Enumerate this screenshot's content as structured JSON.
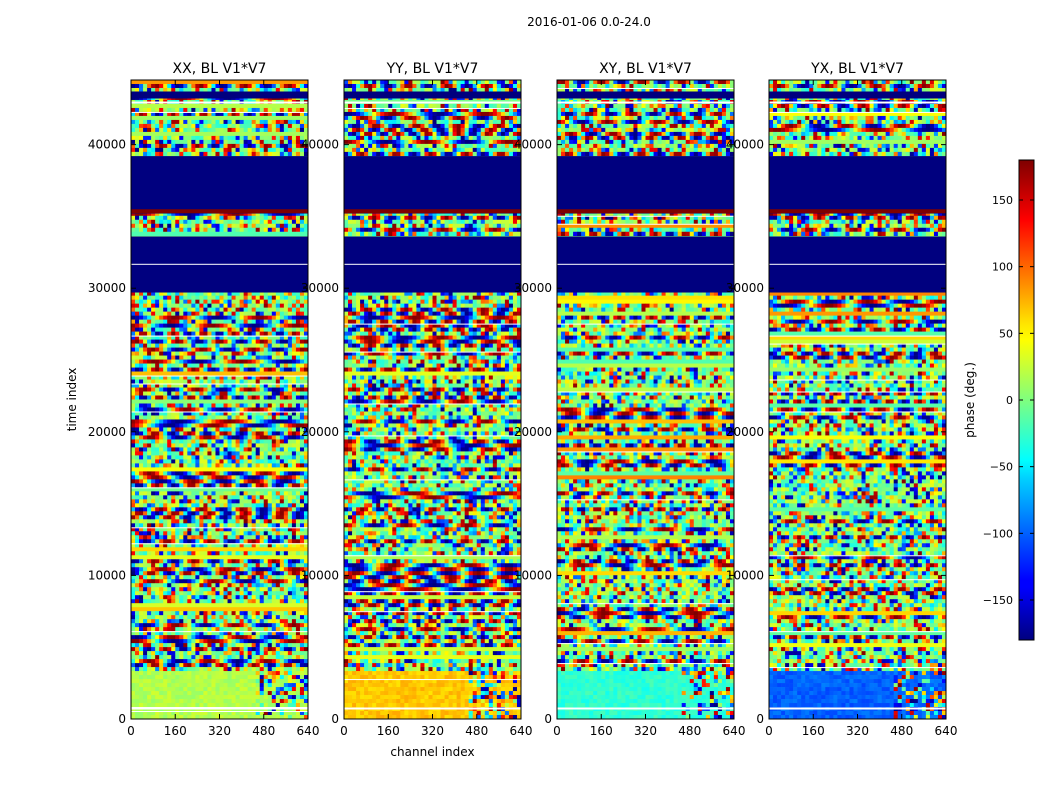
{
  "figure": {
    "suptitle": "2016-01-06 0.0-24.0"
  },
  "chart_data": [
    {
      "type": "heatmap",
      "title": "XX, BL V1*V7",
      "xlabel": "",
      "ylabel": "time index",
      "xlim": [
        0,
        640
      ],
      "ylim": [
        0,
        44500
      ],
      "xticks": [
        "0",
        "160",
        "320",
        "480",
        "640"
      ],
      "yticks": [
        "0",
        "10000",
        "20000",
        "30000",
        "40000"
      ],
      "note_low_block": "green",
      "colormap": "jet"
    },
    {
      "type": "heatmap",
      "title": "YY, BL V1*V7",
      "xlabel": "channel index",
      "ylabel": "",
      "xlim": [
        0,
        640
      ],
      "ylim": [
        0,
        44500
      ],
      "xticks": [
        "0",
        "160",
        "320",
        "480",
        "640"
      ],
      "yticks": [
        "0",
        "10000",
        "20000",
        "30000",
        "40000"
      ],
      "note_low_block": "yellow",
      "colormap": "jet"
    },
    {
      "type": "heatmap",
      "title": "XY, BL V1*V7",
      "xlabel": "",
      "ylabel": "",
      "xlim": [
        0,
        640
      ],
      "ylim": [
        0,
        44500
      ],
      "xticks": [
        "0",
        "160",
        "320",
        "480",
        "640"
      ],
      "yticks": [
        "0",
        "10000",
        "20000",
        "30000",
        "40000"
      ],
      "note_low_block": "cyan",
      "colormap": "jet"
    },
    {
      "type": "heatmap",
      "title": "YX, BL V1*V7",
      "xlabel": "",
      "ylabel": "",
      "xlim": [
        0,
        640
      ],
      "ylim": [
        0,
        44500
      ],
      "xticks": [
        "0",
        "160",
        "320",
        "480",
        "640"
      ],
      "yticks": [
        "0",
        "10000",
        "20000",
        "30000",
        "40000"
      ],
      "note_low_block": "blue",
      "colormap": "jet"
    }
  ],
  "colorbar": {
    "label": "phase (deg.)",
    "range": [
      -180,
      180
    ],
    "ticks": [
      "150",
      "100",
      "50",
      "0",
      "−50",
      "−100",
      "−150"
    ],
    "tick_values": [
      150,
      100,
      50,
      0,
      -50,
      -100,
      -150
    ]
  }
}
